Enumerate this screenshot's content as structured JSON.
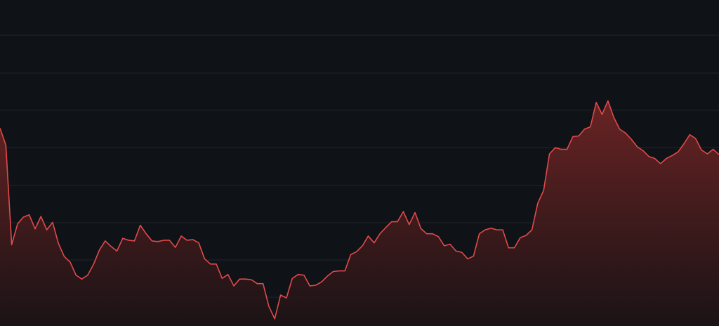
{
  "chart_data": {
    "type": "area",
    "title": "",
    "xlabel": "",
    "ylabel": "",
    "grid": true,
    "legend": "none",
    "ylim": [
      0,
      100
    ],
    "colors": {
      "background": "#0f1216",
      "gridline": "#1f2530",
      "line": "#e04a4a",
      "fill_top": "#6e2424",
      "fill_bottom": "#1c1316"
    },
    "series": [
      {
        "x": [
          0,
          1,
          2,
          3,
          4,
          5,
          6,
          7,
          8,
          9,
          10,
          11,
          12,
          13,
          14,
          15,
          16,
          17,
          18,
          19,
          20,
          21,
          22,
          23,
          24,
          25,
          26,
          27,
          28,
          29,
          30,
          31,
          32,
          33,
          34,
          35,
          36,
          37,
          38,
          39,
          40,
          41,
          42,
          43,
          44,
          45,
          46,
          47,
          48,
          49,
          50,
          51,
          52,
          53,
          54,
          55,
          56,
          57,
          58,
          59,
          60,
          61,
          62,
          63,
          64,
          65,
          66,
          67,
          68,
          69,
          70,
          71,
          72,
          73,
          74,
          75,
          76,
          77,
          78,
          79,
          80,
          81,
          82,
          83,
          84,
          85,
          86,
          87,
          88,
          89,
          90,
          91,
          92,
          93,
          94,
          95,
          96,
          97,
          98,
          99,
          100,
          101,
          102,
          103,
          104,
          105,
          106,
          107,
          108,
          109,
          110,
          111,
          112,
          113,
          114,
          115,
          116,
          117,
          118,
          119,
          120,
          121,
          122,
          123
        ],
        "values": [
          60.7,
          55.5,
          24.9,
          31.3,
          33.4,
          34.1,
          29.8,
          33.6,
          29.5,
          31.8,
          25.3,
          21.3,
          19.6,
          15.6,
          14.4,
          15.6,
          18.9,
          23.3,
          26.1,
          24.4,
          23.0,
          26.9,
          26.3,
          26.1,
          30.9,
          28.3,
          26.1,
          25.9,
          26.3,
          26.3,
          24.1,
          27.6,
          26.3,
          26.5,
          25.5,
          20.6,
          19.0,
          19.0,
          14.6,
          15.8,
          12.3,
          14.4,
          14.4,
          14.2,
          13.0,
          13.0,
          6.0,
          2.2,
          9.5,
          8.6,
          14.6,
          15.8,
          15.6,
          12.3,
          12.5,
          13.5,
          15.3,
          16.7,
          16.9,
          16.9,
          21.9,
          22.8,
          24.6,
          27.6,
          25.5,
          28.3,
          30.2,
          32.0,
          32.0,
          35.1,
          31.1,
          34.8,
          29.9,
          28.3,
          28.3,
          27.4,
          24.6,
          25.1,
          23.0,
          22.6,
          20.6,
          21.4,
          28.3,
          29.5,
          30.0,
          29.5,
          29.5,
          24.0,
          24.0,
          27.1,
          27.8,
          29.5,
          37.7,
          41.6,
          52.8,
          54.7,
          54.2,
          54.2,
          58.1,
          58.3,
          60.4,
          61.1,
          68.6,
          64.9,
          69.1,
          64.0,
          60.4,
          59.2,
          57.3,
          55.0,
          53.8,
          52.0,
          51.4,
          49.8,
          51.4,
          52.3,
          53.4,
          55.9,
          58.7,
          57.5,
          54.0,
          52.8,
          54.2,
          52.6
        ]
      }
    ]
  }
}
